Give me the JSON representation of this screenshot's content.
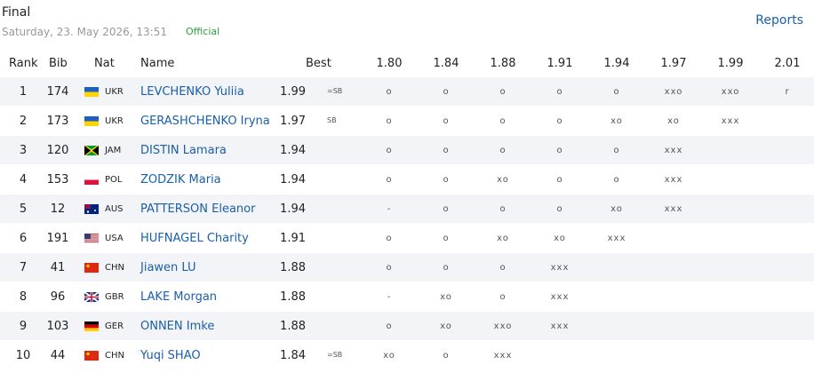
{
  "header": {
    "title": "Final",
    "datetime": "Saturday, 23. May 2026, 13:51",
    "status": "Official",
    "link": "Reports"
  },
  "table": {
    "columns": [
      "Rank",
      "Bib",
      "Nat",
      "Name",
      "Best"
    ],
    "heights": [
      "1.80",
      "1.84",
      "1.88",
      "1.91",
      "1.94",
      "1.97",
      "1.99",
      "2.01"
    ],
    "rows": [
      {
        "rank": "1",
        "bib": "174",
        "nat": "UKR",
        "name": "LEVCHENKO Yuliia",
        "best": "1.99",
        "note": "=SB",
        "attempts": [
          "o",
          "o",
          "o",
          "o",
          "o",
          "xxo",
          "xxo",
          "r"
        ]
      },
      {
        "rank": "2",
        "bib": "173",
        "nat": "UKR",
        "name": "GERASHCHENKO Iryna",
        "best": "1.97",
        "note": "SB",
        "attempts": [
          "o",
          "o",
          "o",
          "o",
          "xo",
          "xo",
          "xxx"
        ]
      },
      {
        "rank": "3",
        "bib": "120",
        "nat": "JAM",
        "name": "DISTIN Lamara",
        "best": "1.94",
        "attempts": [
          "o",
          "o",
          "o",
          "o",
          "o",
          "xxx"
        ]
      },
      {
        "rank": "4",
        "bib": "153",
        "nat": "POL",
        "name": "ZODZIK Maria",
        "best": "1.94",
        "attempts": [
          "o",
          "o",
          "xo",
          "o",
          "o",
          "xxx"
        ]
      },
      {
        "rank": "5",
        "bib": "12",
        "nat": "AUS",
        "name": "PATTERSON Eleanor",
        "best": "1.94",
        "attempts": [
          "-",
          "o",
          "o",
          "o",
          "xo",
          "xxx"
        ]
      },
      {
        "rank": "6",
        "bib": "191",
        "nat": "USA",
        "name": "HUFNAGEL Charity",
        "best": "1.91",
        "attempts": [
          "o",
          "o",
          "xo",
          "xo",
          "xxx"
        ]
      },
      {
        "rank": "7",
        "bib": "41",
        "nat": "CHN",
        "name": "Jiawen LU",
        "best": "1.88",
        "attempts": [
          "o",
          "o",
          "o",
          "xxx"
        ]
      },
      {
        "rank": "8",
        "bib": "96",
        "nat": "GBR",
        "name": "LAKE Morgan",
        "best": "1.88",
        "attempts": [
          "-",
          "xo",
          "o",
          "xxx"
        ]
      },
      {
        "rank": "9",
        "bib": "103",
        "nat": "GER",
        "name": "ONNEN Imke",
        "best": "1.88",
        "attempts": [
          "o",
          "xo",
          "xxo",
          "xxx"
        ]
      },
      {
        "rank": "10",
        "bib": "44",
        "nat": "CHN",
        "name": "Yuqi SHAO",
        "best": "1.84",
        "note": "=SB",
        "attempts": [
          "xo",
          "o",
          "xxx"
        ]
      }
    ]
  }
}
